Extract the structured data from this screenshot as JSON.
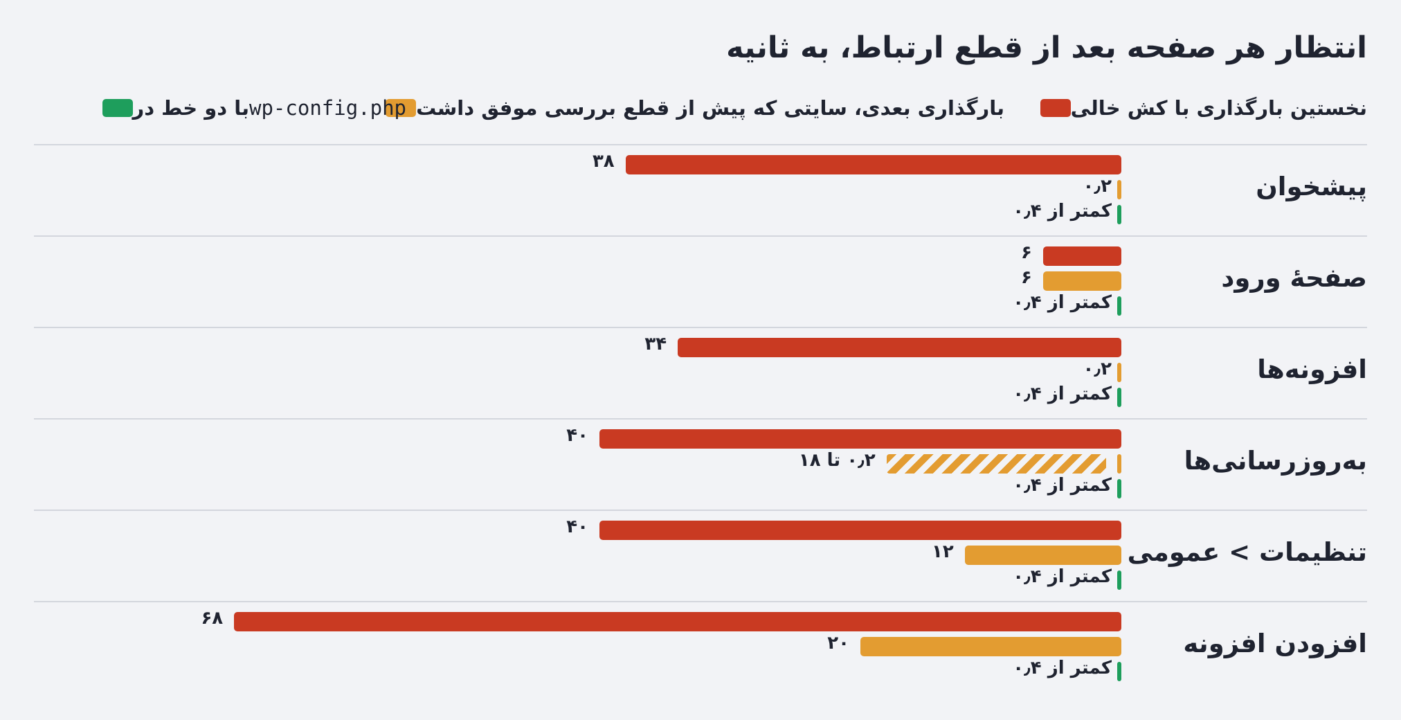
{
  "title": "انتظار هر صفحه بعد از قطع ارتباط، به ثانیه",
  "legend": [
    {
      "label": "نخستین بارگذاری با کش خالی",
      "color": "#c93a22"
    },
    {
      "label": "بارگذاری بعدی، سایتی که پیش از قطع بررسی موفق داشت",
      "color": "#e39c31"
    },
    {
      "label": "با دو خط در",
      "code": "wp-config.php",
      "color": "#1e9e5c"
    }
  ],
  "chart_data": {
    "type": "bar",
    "orientation": "horizontal",
    "direction": "rtl",
    "title": "انتظار هر صفحه بعد از قطع ارتباط، به ثانیه",
    "xlim": [
      0,
      70
    ],
    "grid": false,
    "legend_position": "top",
    "categories": [
      "پیشخوان",
      "صفحهٔ ورود",
      "افزونه‌ها",
      "به‌روزرسانی‌ها",
      "تنظیمات > عمومی",
      "افزودن افزونه"
    ],
    "series": [
      {
        "name": "نخستین بارگذاری با کش خالی",
        "color": "#c93a22",
        "values": [
          38,
          6,
          34,
          40,
          40,
          68
        ],
        "labels": [
          "۳۸",
          "۶",
          "۳۴",
          "۴۰",
          "۴۰",
          "۶۸"
        ]
      },
      {
        "name": "بارگذاری بعدی، سایتی که پیش از قطع بررسی موفق داشت",
        "color": "#e39c31",
        "values": [
          0.2,
          6,
          0.2,
          [
            0.2,
            18
          ],
          12,
          20
        ],
        "labels": [
          "۰٫۲",
          "۶",
          "۰٫۲",
          "۰٫۲ تا ۱۸",
          "۱۲",
          "۲۰"
        ]
      },
      {
        "name": "با دو خط در wp-config.php",
        "color": "#1e9e5c",
        "values": [
          "<0.4",
          "<0.4",
          "<0.4",
          "<0.4",
          "<0.4",
          "<0.4"
        ],
        "labels": [
          "کمتر از ۰٫۴",
          "کمتر از ۰٫۴",
          "کمتر از ۰٫۴",
          "کمتر از ۰٫۴",
          "کمتر از ۰٫۴",
          "کمتر از ۰٫۴"
        ]
      }
    ]
  }
}
